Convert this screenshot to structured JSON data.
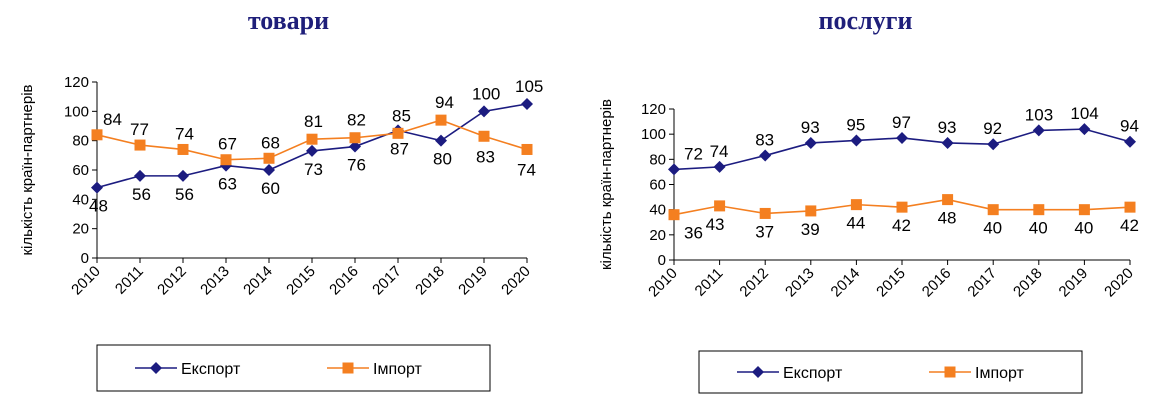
{
  "chart_data": [
    {
      "type": "line",
      "title": "товари",
      "ylabel": "кількість країн-партнерів",
      "xlabel": "",
      "ylim": [
        0,
        120
      ],
      "yticks": [
        0,
        20,
        40,
        60,
        80,
        100,
        120
      ],
      "categories": [
        "2010",
        "2011",
        "2012",
        "2013",
        "2014",
        "2015",
        "2016",
        "2017",
        "2018",
        "2019",
        "2020"
      ],
      "legend_position": "bottom",
      "series": [
        {
          "name": "Експорт",
          "marker": "diamond",
          "color": "#1c1c80",
          "values": [
            48,
            56,
            56,
            63,
            60,
            73,
            76,
            87,
            80,
            100,
            105
          ],
          "labels": [
            "48",
            "56",
            "56",
            "63",
            "60",
            "73",
            "76",
            "87",
            "80",
            "100",
            "105"
          ]
        },
        {
          "name": "Імпорт",
          "marker": "square",
          "color": "#f47f20",
          "values": [
            84,
            77,
            74,
            67,
            68,
            81,
            82,
            85,
            94,
            83,
            74
          ],
          "labels": [
            "84",
            "77",
            "74",
            "67",
            "68",
            "81",
            "82",
            "85",
            "94",
            "83",
            "74"
          ]
        }
      ]
    },
    {
      "type": "line",
      "title": "послуги",
      "ylabel": "кількість країн-партнерів",
      "xlabel": "",
      "ylim": [
        0,
        120
      ],
      "yticks": [
        0,
        20,
        40,
        60,
        80,
        100,
        120
      ],
      "categories": [
        "2010",
        "2011",
        "2012",
        "2013",
        "2014",
        "2015",
        "2016",
        "2017",
        "2018",
        "2019",
        "2020"
      ],
      "legend_position": "bottom",
      "series": [
        {
          "name": "Експорт",
          "marker": "diamond",
          "color": "#1c1c80",
          "values": [
            72,
            74,
            83,
            93,
            95,
            97,
            93,
            92,
            103,
            104,
            94
          ],
          "labels": [
            "72",
            "74",
            "83",
            "93",
            "95",
            "97",
            "93",
            "92",
            "103",
            "104",
            "94"
          ]
        },
        {
          "name": "Імпорт",
          "marker": "square",
          "color": "#f47f20",
          "values": [
            36,
            43,
            37,
            39,
            44,
            42,
            48,
            40,
            40,
            40,
            42
          ],
          "labels": [
            "36",
            "43",
            "37",
            "39",
            "44",
            "42",
            "48",
            "40",
            "40",
            "40",
            "42"
          ]
        }
      ]
    }
  ]
}
